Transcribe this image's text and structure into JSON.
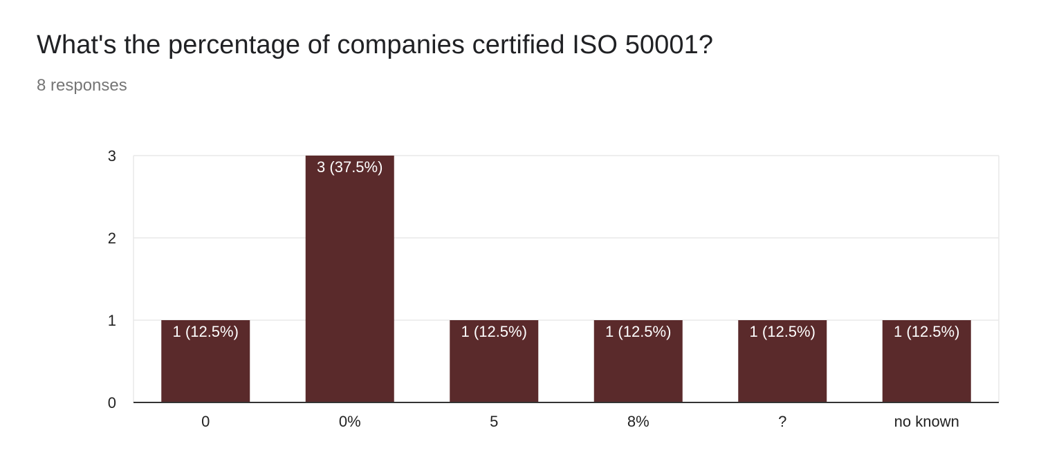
{
  "question": {
    "title": "What's the percentage of companies certified ISO 50001?",
    "responses": "8 responses"
  },
  "colors": {
    "bar": "#5a2a2b",
    "bar_label": "#ffffff",
    "grid": "#e8e8e8",
    "axis": "#333333",
    "tick_text": "#222222"
  },
  "chart_data": {
    "type": "bar",
    "categories": [
      "0",
      "0%",
      "5",
      "8%",
      "?",
      "no known"
    ],
    "values": [
      1,
      3,
      1,
      1,
      1,
      1
    ],
    "data_labels": [
      "1 (12.5%)",
      "3 (37.5%)",
      "1 (12.5%)",
      "1 (12.5%)",
      "1 (12.5%)",
      "1 (12.5%)"
    ],
    "y_ticks": [
      "0",
      "1",
      "2",
      "3"
    ],
    "ylim": [
      0,
      3
    ],
    "grid": true,
    "legend": "none",
    "title": "What's the percentage of companies certified ISO 50001?",
    "xlabel": "",
    "ylabel": ""
  }
}
